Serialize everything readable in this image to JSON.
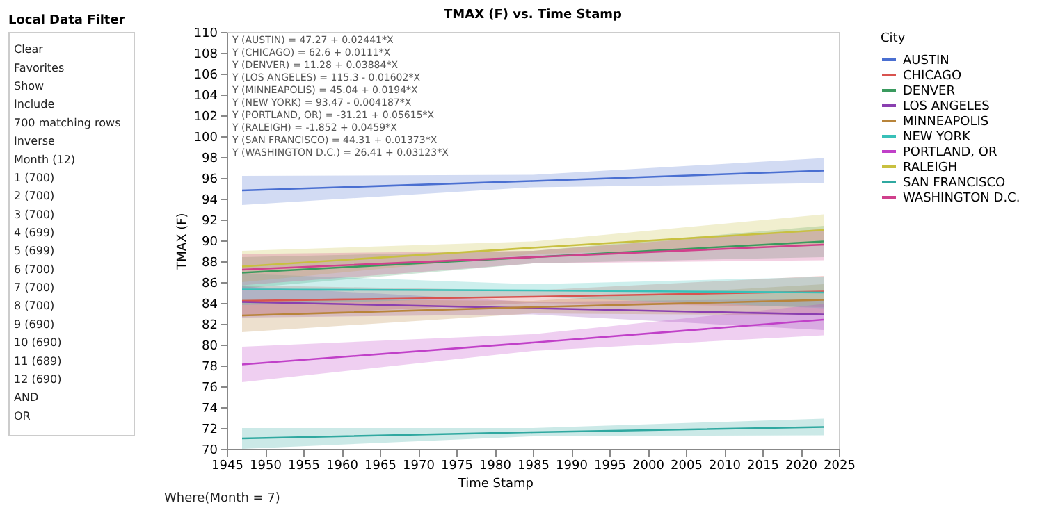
{
  "chart_data": [
    {
      "type": "other",
      "title": "Local Data Filter",
      "annotations": [
        "Clear",
        "Favorites",
        "Show",
        "Include",
        "700 matching rows",
        "Inverse",
        "Month (12)",
        "1 (700)",
        "2 (700)",
        "3 (700)",
        "4 (699)",
        "5 (699)",
        "6 (700)",
        "7 (700)",
        "8 (700)",
        "9 (690)",
        "10 (690)",
        "11 (689)",
        "12 (690)",
        "AND",
        "OR"
      ]
    },
    {
      "type": "line",
      "title": "TMAX (F) vs. Time Stamp",
      "xlabel": "Time Stamp",
      "ylabel": "TMAX (F)",
      "legend_title": "City",
      "legend": "right",
      "grid": false,
      "xlim": [
        1945,
        2025
      ],
      "xticks": [
        1945,
        1950,
        1955,
        1960,
        1965,
        1970,
        1975,
        1980,
        1985,
        1990,
        1995,
        2000,
        2005,
        2010,
        2015,
        2020,
        2025
      ],
      "ylim": [
        70,
        110
      ],
      "yticks": [
        70,
        72,
        74,
        76,
        78,
        80,
        82,
        84,
        86,
        88,
        90,
        92,
        94,
        96,
        98,
        100,
        102,
        104,
        106,
        108,
        110
      ],
      "x": [
        1947,
        1985,
        2023
      ],
      "series": [
        {
          "name": "AUSTIN",
          "color": "#4a6fd1",
          "values": [
            94.8,
            95.7,
            96.7
          ],
          "lower": [
            93.4,
            95.1,
            95.5
          ],
          "upper": [
            96.2,
            96.3,
            97.9
          ]
        },
        {
          "name": "CHICAGO",
          "color": "#d9534f",
          "values": [
            84.2,
            84.6,
            85.1
          ],
          "lower": [
            82.7,
            84.0,
            83.6
          ],
          "upper": [
            85.7,
            85.2,
            86.6
          ]
        },
        {
          "name": "DENVER",
          "color": "#3a9a5e",
          "values": [
            86.9,
            88.4,
            89.9
          ],
          "lower": [
            85.4,
            87.8,
            88.4
          ],
          "upper": [
            88.4,
            89.0,
            91.4
          ]
        },
        {
          "name": "LOS ANGELES",
          "color": "#8a3fb0",
          "values": [
            84.1,
            83.5,
            82.9
          ],
          "lower": [
            82.6,
            82.9,
            81.4
          ],
          "upper": [
            85.6,
            84.1,
            84.4
          ]
        },
        {
          "name": "MINNEAPOLIS",
          "color": "#b8843a",
          "values": [
            82.8,
            83.6,
            84.3
          ],
          "lower": [
            81.2,
            83.0,
            82.8
          ],
          "upper": [
            84.4,
            84.2,
            85.8
          ]
        },
        {
          "name": "NEW YORK",
          "color": "#38c0b8",
          "values": [
            85.3,
            85.2,
            85.0
          ],
          "lower": [
            83.8,
            84.6,
            83.5
          ],
          "upper": [
            86.8,
            85.8,
            86.5
          ]
        },
        {
          "name": "PORTLAND, OR",
          "color": "#c040c8",
          "values": [
            78.1,
            80.2,
            82.4
          ],
          "lower": [
            76.4,
            79.4,
            80.9
          ],
          "upper": [
            79.8,
            81.0,
            83.9
          ]
        },
        {
          "name": "RALEIGH",
          "color": "#c8c040",
          "values": [
            87.5,
            89.3,
            91.0
          ],
          "lower": [
            86.0,
            88.7,
            89.5
          ],
          "upper": [
            89.0,
            89.9,
            92.5
          ]
        },
        {
          "name": "SAN FRANCISCO",
          "color": "#2fa8a0",
          "values": [
            71.0,
            71.6,
            72.1
          ],
          "lower": [
            70.0,
            71.2,
            71.3
          ],
          "upper": [
            72.0,
            72.0,
            72.9
          ]
        },
        {
          "name": "WASHINGTON D.C.",
          "color": "#d0408c",
          "values": [
            87.2,
            88.4,
            89.6
          ],
          "lower": [
            85.7,
            87.8,
            88.1
          ],
          "upper": [
            88.7,
            89.0,
            91.1
          ]
        }
      ],
      "annotations": [
        "Y (AUSTIN) = 47.27 + 0.02441*X",
        "Y (CHICAGO) = 62.6 + 0.0111*X",
        "Y (DENVER) = 11.28 + 0.03884*X",
        "Y (LOS ANGELES) = 115.3 - 0.01602*X",
        "Y (MINNEAPOLIS) = 45.04 + 0.0194*X",
        "Y (NEW YORK) = 93.47 - 0.004187*X",
        "Y (PORTLAND, OR) = -31.21 + 0.05615*X",
        "Y (RALEIGH) = -1.852 + 0.0459*X",
        "Y (SAN FRANCISCO) = 44.31 + 0.01373*X",
        "Y (WASHINGTON D.C.) = 26.41 + 0.03123*X",
        "Where(Month = 7)"
      ]
    }
  ]
}
